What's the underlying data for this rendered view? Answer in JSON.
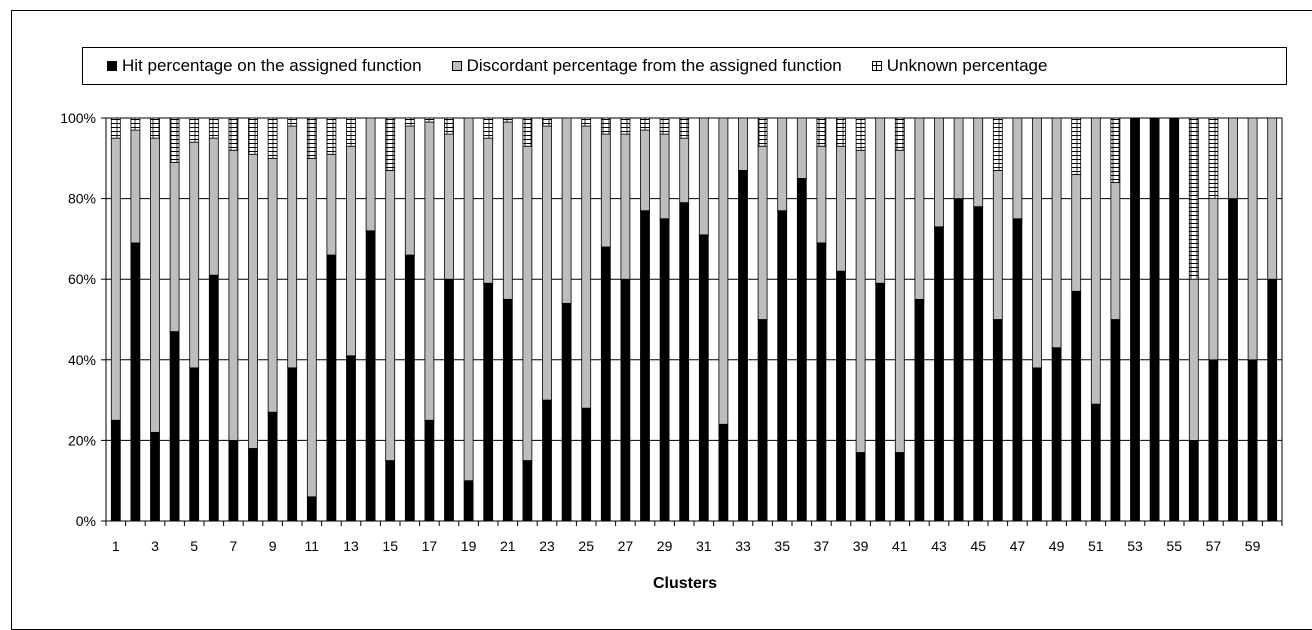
{
  "chart_data": {
    "type": "bar",
    "stacked": true,
    "xlabel": "Clusters",
    "ylabel": "",
    "ylim": [
      0,
      100
    ],
    "y_ticks": [
      "0%",
      "20%",
      "40%",
      "60%",
      "80%",
      "100%"
    ],
    "x_tick_labels": [
      "1",
      "3",
      "5",
      "7",
      "9",
      "11",
      "13",
      "15",
      "17",
      "19",
      "21",
      "23",
      "25",
      "27",
      "29",
      "31",
      "33",
      "35",
      "37",
      "39",
      "41",
      "43",
      "45",
      "47",
      "49",
      "51",
      "53",
      "55",
      "57",
      "59"
    ],
    "grid": "horizontal",
    "legend_position": "top",
    "categories": [
      1,
      2,
      3,
      4,
      5,
      6,
      7,
      8,
      9,
      10,
      11,
      12,
      13,
      14,
      15,
      16,
      17,
      18,
      19,
      20,
      21,
      22,
      23,
      24,
      25,
      26,
      27,
      28,
      29,
      30,
      31,
      32,
      33,
      34,
      35,
      36,
      37,
      38,
      39,
      40,
      41,
      42,
      43,
      44,
      45,
      46,
      47,
      48,
      49,
      50,
      51,
      52,
      53,
      54,
      55,
      56,
      57,
      58,
      59,
      60
    ],
    "series": [
      {
        "name": "Hit percentage on the assigned function",
        "color": "#000000",
        "values": [
          25,
          69,
          22,
          47,
          38,
          61,
          20,
          18,
          27,
          38,
          6,
          66,
          41,
          72,
          15,
          66,
          25,
          60,
          10,
          59,
          55,
          15,
          30,
          54,
          28,
          68,
          60,
          77,
          75,
          79,
          71,
          24,
          87,
          50,
          77,
          85,
          69,
          62,
          17,
          59,
          17,
          55,
          73,
          80,
          78,
          50,
          75,
          38,
          43,
          57,
          29,
          50,
          100,
          100,
          100,
          20,
          40,
          80,
          40,
          60
        ]
      },
      {
        "name": "Discordant percentage from the assigned function",
        "color": "#bdbdbd",
        "values": [
          70,
          28,
          73,
          42,
          56,
          34,
          72,
          73,
          63,
          60,
          84,
          25,
          52,
          28,
          72,
          32,
          74,
          36,
          90,
          36,
          44,
          78,
          68,
          46,
          70,
          28,
          36,
          20,
          21,
          16,
          29,
          76,
          13,
          43,
          23,
          15,
          24,
          31,
          75,
          41,
          75,
          45,
          27,
          20,
          22,
          37,
          25,
          62,
          57,
          29,
          71,
          34,
          0,
          0,
          0,
          40,
          40,
          20,
          60,
          40
        ]
      },
      {
        "name": "Unknown percentage",
        "color": "#ffffff",
        "values": [
          5,
          3,
          5,
          11,
          6,
          5,
          8,
          9,
          10,
          2,
          10,
          9,
          7,
          0,
          13,
          2,
          1,
          4,
          0,
          5,
          1,
          7,
          2,
          0,
          2,
          4,
          4,
          3,
          4,
          5,
          0,
          0,
          0,
          7,
          0,
          0,
          7,
          7,
          8,
          0,
          8,
          0,
          0,
          0,
          0,
          13,
          0,
          0,
          0,
          14,
          0,
          16,
          0,
          0,
          0,
          40,
          20,
          0,
          0,
          0
        ]
      }
    ]
  }
}
